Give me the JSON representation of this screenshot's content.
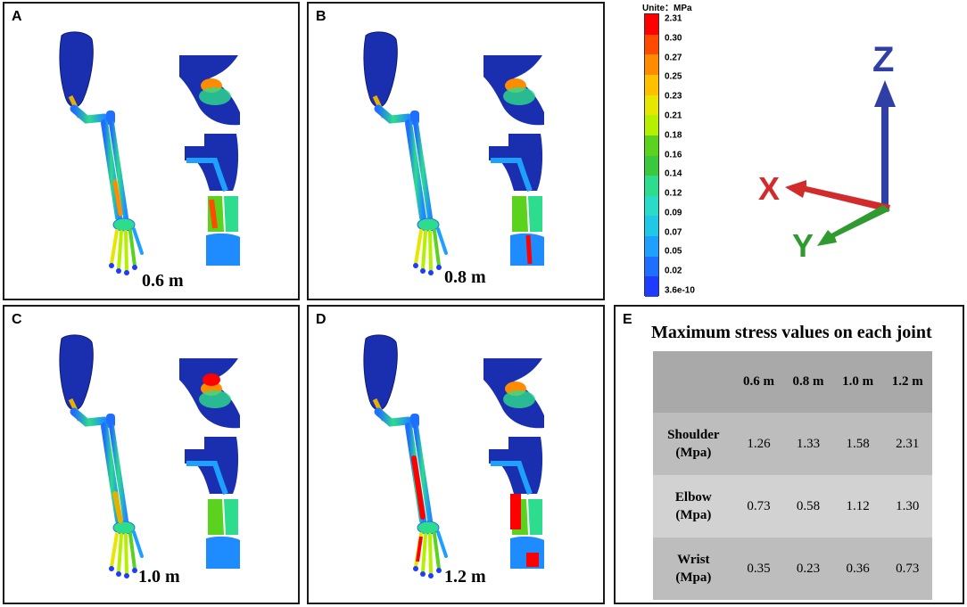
{
  "panels": [
    {
      "id": "A",
      "label": "A",
      "height_label": "0.6 m"
    },
    {
      "id": "B",
      "label": "B",
      "height_label": "0.8 m"
    },
    {
      "id": "C",
      "label": "C",
      "height_label": "1.0 m"
    },
    {
      "id": "D",
      "label": "D",
      "height_label": "1.2 m"
    }
  ],
  "legend": {
    "title": "Unite：MPa",
    "ticks": [
      "2.31",
      "0.30",
      "0.27",
      "0.25",
      "0.23",
      "0.21",
      "0.18",
      "0.16",
      "0.14",
      "0.12",
      "0.09",
      "0.07",
      "0.05",
      "0.02",
      "3.6e-10"
    ],
    "colors": [
      "#ff0000",
      "#ff4a00",
      "#ff8c00",
      "#ffc000",
      "#e6e600",
      "#b4f000",
      "#5ad21e",
      "#3cc83c",
      "#2ddc8c",
      "#28dcc8",
      "#1ec8e6",
      "#1ea0ff",
      "#1e6eff",
      "#1e3cff"
    ]
  },
  "axes": {
    "x": "X",
    "y": "Y",
    "z": "Z",
    "x_color": "#d12b2b",
    "y_color": "#2f9a2f",
    "z_color": "#2f3fa5"
  },
  "table": {
    "panel_label": "E",
    "title": "Maximum stress values on each joint",
    "columns": [
      "",
      "0.6 m",
      "0.8 m",
      "1.0 m",
      "1.2 m"
    ],
    "rows": [
      {
        "joint": "Shoulder",
        "unit": "(Mpa)",
        "values": [
          "1.26",
          "1.33",
          "1.58",
          "2.31"
        ]
      },
      {
        "joint": "Elbow",
        "unit": "(Mpa)",
        "values": [
          "0.73",
          "0.58",
          "1.12",
          "1.30"
        ]
      },
      {
        "joint": "Wrist",
        "unit": "(Mpa)",
        "values": [
          "0.35",
          "0.23",
          "0.36",
          "0.73"
        ]
      }
    ]
  }
}
